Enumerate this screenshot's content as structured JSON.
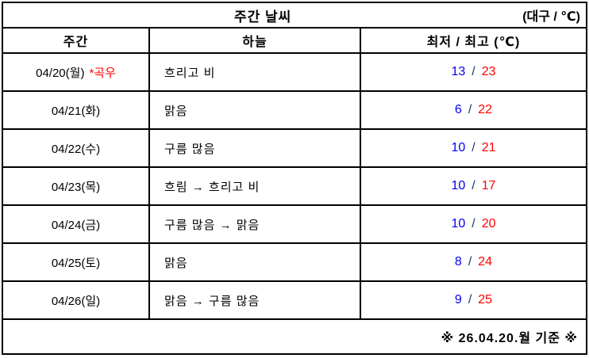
{
  "header": {
    "title": "주간 날씨",
    "unit_label": "(대구 / ℃)"
  },
  "columns": {
    "period": "주간",
    "sky": "하늘",
    "temps": "최저 / 최고 (℃)"
  },
  "labels": {
    "temp_separator": "/"
  },
  "rows": [
    {
      "date": "04/20(월)",
      "note": "*곡우",
      "sky": "흐리고 비",
      "min": "13",
      "max": "23"
    },
    {
      "date": "04/21(화)",
      "note": "",
      "sky": "맑음",
      "min": "6",
      "max": "22"
    },
    {
      "date": "04/22(수)",
      "note": "",
      "sky": "구름 많음",
      "min": "10",
      "max": "21"
    },
    {
      "date": "04/23(목)",
      "note": "",
      "sky": "흐림 → 흐리고 비",
      "min": "10",
      "max": "17"
    },
    {
      "date": "04/24(금)",
      "note": "",
      "sky": "구름 많음 → 맑음",
      "min": "10",
      "max": "20"
    },
    {
      "date": "04/25(토)",
      "note": "",
      "sky": "맑음",
      "min": "8",
      "max": "24"
    },
    {
      "date": "04/26(일)",
      "note": "",
      "sky": "맑음 → 구름 많음",
      "min": "9",
      "max": "25"
    }
  ],
  "footer": {
    "note": "※ 26.04.20.월 기준 ※"
  },
  "colors": {
    "min_temp": "#0000f0",
    "max_temp": "#ff0000",
    "special_day_note": "#ff0000",
    "border": "#000000"
  }
}
